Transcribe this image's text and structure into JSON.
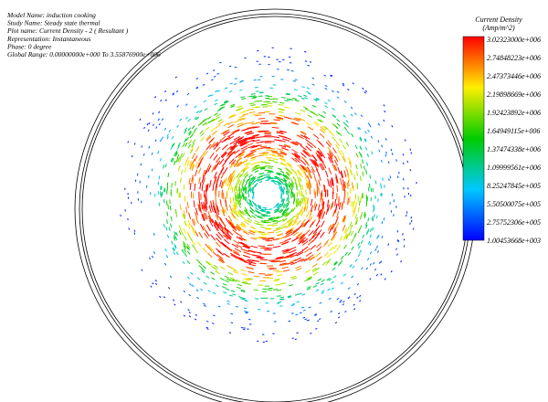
{
  "header": {
    "lines": [
      "Model Name: induction cooking",
      "Study Name: Steady state thermal",
      "Plot name: Current Density - 2 ( Resultant )",
      "Representation: Instantaneous",
      "Phase: 0 degree",
      "Global Range: 0.00000000e+000 To 3.55876900e+006"
    ]
  },
  "legend": {
    "title": "Current Density",
    "unit": "(Amp/m^2)",
    "labels": [
      "3.02323000e+006",
      "2.74848223e+006",
      "2.47373446e+006",
      "2.19898669e+006",
      "1.92423892e+006",
      "1.64949115e+006",
      "1.37474338e+006",
      "1.09999561e+006",
      "8.25247845e+005",
      "5.50500075e+005",
      "2.75752306e+005",
      "1.00453668e+003"
    ]
  }
}
